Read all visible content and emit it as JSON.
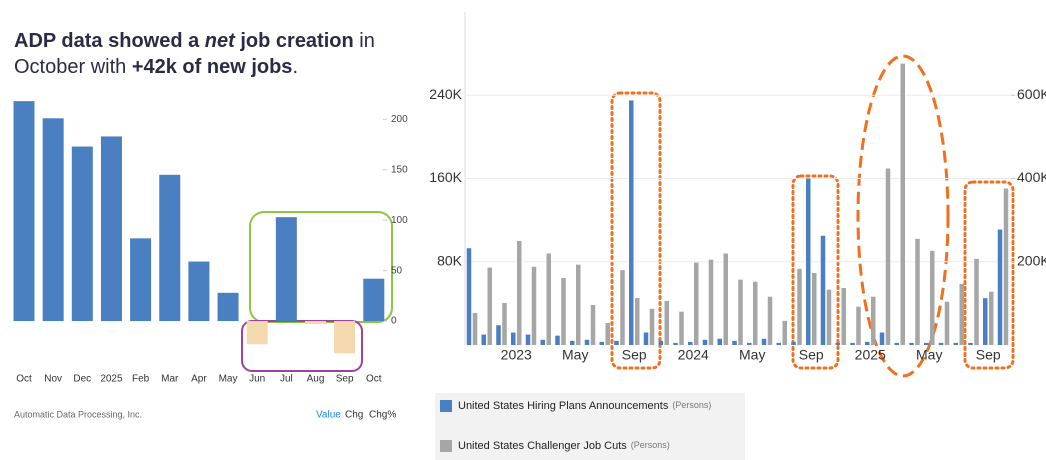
{
  "headline": [
    "ADP data showed a",
    "net",
    "job creation",
    "in",
    "October with",
    "+42k of new jobs",
    "."
  ],
  "chart_data": [
    {
      "type": "bar",
      "categories": [
        "Oct",
        "Nov",
        "Dec",
        "2025",
        "Feb",
        "Mar",
        "Apr",
        "May",
        "Jun",
        "Jul",
        "Aug",
        "Sep",
        "Oct"
      ],
      "values": [
        218,
        201,
        173,
        183,
        82,
        145,
        59,
        28,
        -23,
        103,
        -3,
        -32,
        42
      ],
      "colors": [
        "#4a7fc1",
        "#4a7fc1",
        "#4a7fc1",
        "#4a7fc1",
        "#4a7fc1",
        "#4a7fc1",
        "#4a7fc1",
        "#4a7fc1",
        "#f3d9ad",
        "#4a7fc1",
        "#f3d9ad",
        "#f3d9ad",
        "#4a7fc1"
      ],
      "ylim": [
        -48,
        234
      ],
      "yticks": [
        0,
        50,
        100,
        150,
        200
      ],
      "source": "Automatic Data Processing, Inc.",
      "view_options": [
        "Value",
        "Chg",
        "Chg%"
      ]
    },
    {
      "type": "grouped-bar",
      "categories": [
        null,
        null,
        null,
        "2023",
        null,
        null,
        null,
        "May",
        null,
        null,
        null,
        "Sep",
        null,
        null,
        null,
        "2024",
        null,
        null,
        null,
        "May",
        null,
        null,
        null,
        "Sep",
        null,
        null,
        null,
        "2025",
        null,
        null,
        null,
        "May",
        null,
        null,
        null,
        "Sep",
        null
      ],
      "series": [
        {
          "name": "United States Hiring Plans Announcements",
          "unit": "(Persons)",
          "color": "#4a7fc1",
          "values": [
            93000,
            10000,
            19000,
            12000,
            10000,
            5000,
            9000,
            4000,
            5000,
            3000,
            4000,
            235000,
            12000,
            4000,
            2000,
            3000,
            5000,
            6000,
            4000,
            2000,
            6000,
            2000,
            3000,
            160000,
            105000,
            2000,
            2000,
            3000,
            12000,
            2000,
            2000,
            2000,
            2000,
            2000,
            2000,
            45000,
            111000
          ]
        },
        {
          "name": "United States Challenger Job Cuts",
          "unit": "(Persons)",
          "color": "#a6a6a6",
          "axis": "y2",
          "values": [
            77000,
            186000,
            101000,
            250000,
            188000,
            220000,
            161000,
            193000,
            96000,
            53000,
            180000,
            113000,
            87000,
            106000,
            80000,
            198000,
            205000,
            220000,
            157000,
            152000,
            116000,
            58000,
            183000,
            173000,
            133000,
            137000,
            92000,
            116000,
            424000,
            676000,
            255000,
            226000,
            104000,
            147000,
            207000,
            128000,
            376000
          ]
        }
      ],
      "ylim": [
        0,
        320000
      ],
      "yticks": [
        {
          "value": 80000,
          "label": "80K"
        },
        {
          "value": 160000,
          "label": "160K"
        },
        {
          "value": 240000,
          "label": "240K"
        }
      ],
      "y2lim": [
        0,
        800000
      ],
      "y2ticks": [
        {
          "value": 200000,
          "label": "200K"
        },
        {
          "value": 400000,
          "label": "400K"
        },
        {
          "value": 600000,
          "label": "600K"
        }
      ],
      "grid": true
    }
  ]
}
